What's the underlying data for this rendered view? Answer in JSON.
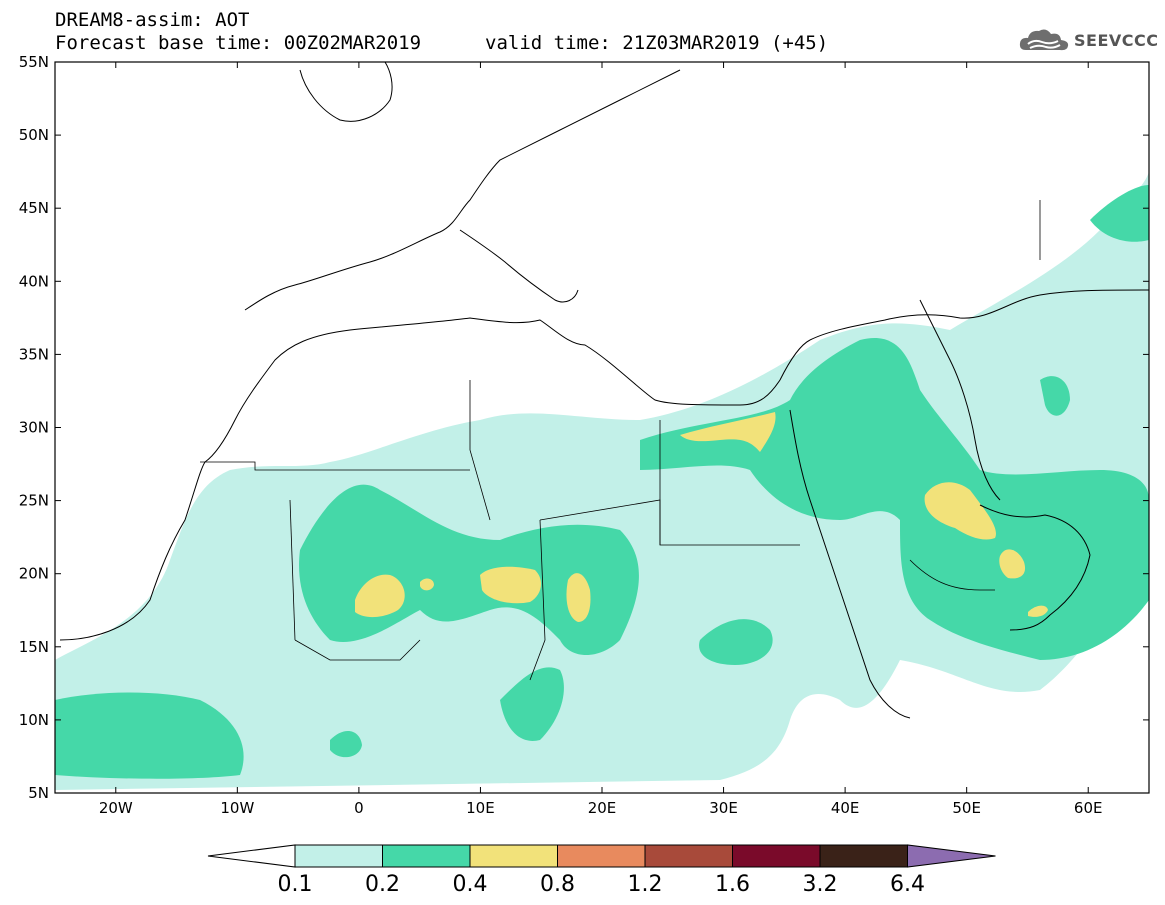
{
  "header": {
    "line1": "DREAM8-assim: AOT",
    "line2": "Forecast base time: 00Z02MAR2019",
    "line3": "valid time: 21Z03MAR2019 (+45)"
  },
  "logo": {
    "text": "SEEVCCC",
    "icon": "cloud-icon"
  },
  "map": {
    "lat_range": [
      5,
      55
    ],
    "lon_range": [
      -25,
      65
    ],
    "lat_ticks": [
      "5N",
      "10N",
      "15N",
      "20N",
      "25N",
      "30N",
      "35N",
      "40N",
      "45N",
      "50N",
      "55N"
    ],
    "lon_ticks": [
      "20W",
      "10W",
      "0",
      "10E",
      "20E",
      "30E",
      "40E",
      "50E",
      "60E"
    ],
    "fill_colors": {
      "low": "#c2f0e8",
      "mid": "#45d8a8",
      "high": "#f2e27a"
    }
  },
  "colorbar": {
    "labels": [
      "0.1",
      "0.2",
      "0.4",
      "0.8",
      "1.2",
      "1.6",
      "3.2",
      "6.4"
    ],
    "colors": [
      "#c2f0e8",
      "#45d8a8",
      "#f2e27a",
      "#e88a5e",
      "#a84a3a",
      "#7a0a2a",
      "#3a2218",
      "#8c6cb0"
    ],
    "under_color": "#ffffff"
  }
}
